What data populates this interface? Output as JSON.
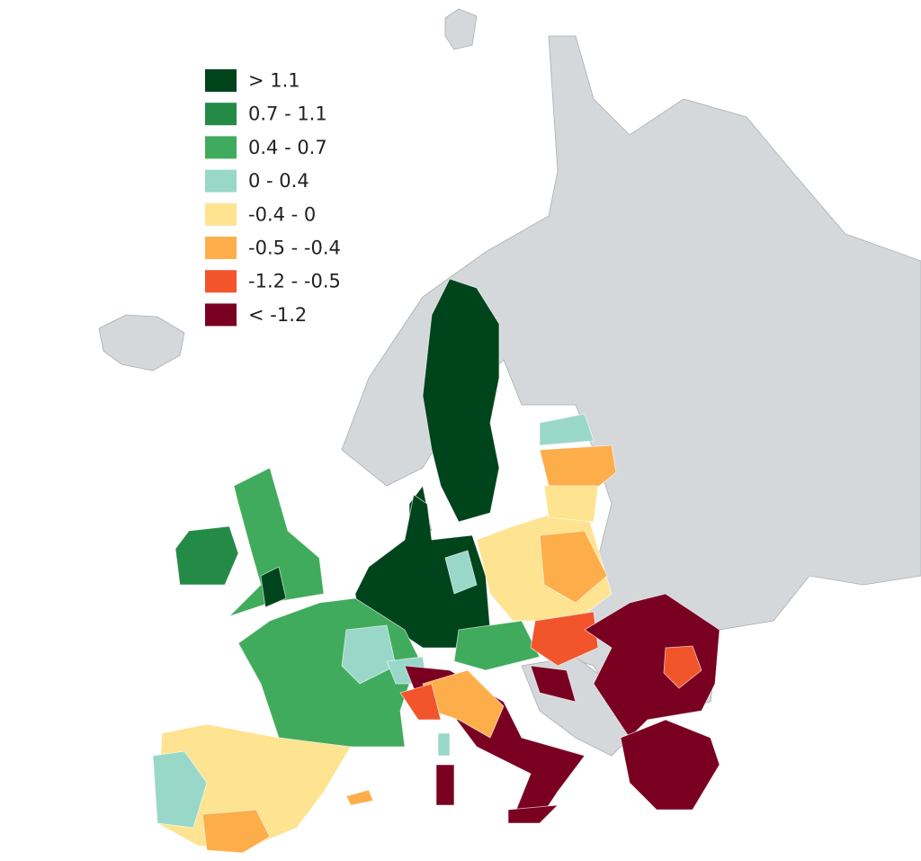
{
  "legend": {
    "items": [
      {
        "label": "> 1.1",
        "color": "#00441b"
      },
      {
        "label": "0.7 - 1.1",
        "color": "#238b45"
      },
      {
        "label": "0.4 - 0.7",
        "color": "#41ab5d"
      },
      {
        "label": "0 - 0.4",
        "color": "#99d8c9"
      },
      {
        "label": "-0.4 - 0",
        "color": "#fee391"
      },
      {
        "label": "-0.5 - -0.4",
        "color": "#fdae4b"
      },
      {
        "label": "-1.2 - -0.5",
        "color": "#f2552c"
      },
      {
        "label": "< -1.2",
        "color": "#7a0022"
      }
    ]
  }
}
